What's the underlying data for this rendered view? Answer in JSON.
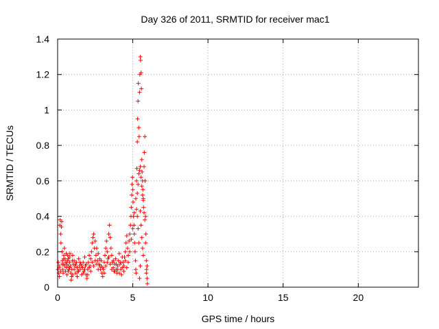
{
  "chart_data": {
    "type": "scatter",
    "title": "Day 326 of 2011, SRMTID for receiver mac1",
    "xlabel": "GPS time / hours",
    "ylabel": "SRMTID / TECUs",
    "xlim": [
      0,
      24
    ],
    "ylim": [
      0,
      1.4
    ],
    "xticks": [
      0,
      5,
      10,
      15,
      20
    ],
    "yticks": [
      0,
      0.2,
      0.4,
      0.6,
      0.8,
      1,
      1.2,
      1.4
    ],
    "ytick_labels": [
      "0",
      "0.2",
      "0.4",
      "0.6",
      "0.8",
      "1",
      "1.2",
      "1.4"
    ],
    "grid": true,
    "marker": "plus",
    "color": "#ff0000",
    "series": [
      {
        "points": [
          [
            0.02,
            0.1
          ],
          [
            0.05,
            0.14
          ],
          [
            0.08,
            0.08
          ],
          [
            0.1,
            0.12
          ],
          [
            0.12,
            0.06
          ],
          [
            0.15,
            0.35
          ],
          [
            0.17,
            0.38
          ],
          [
            0.2,
            0.3
          ],
          [
            0.22,
            0.25
          ],
          [
            0.25,
            0.34
          ],
          [
            0.27,
            0.37
          ],
          [
            0.3,
            0.2
          ],
          [
            0.32,
            0.15
          ],
          [
            0.35,
            0.1
          ],
          [
            0.37,
            0.08
          ],
          [
            0.4,
            0.13
          ],
          [
            0.42,
            0.18
          ],
          [
            0.45,
            0.22
          ],
          [
            0.47,
            0.12
          ],
          [
            0.5,
            0.16
          ],
          [
            0.52,
            0.09
          ],
          [
            0.55,
            0.14
          ],
          [
            0.57,
            0.19
          ],
          [
            0.6,
            0.11
          ],
          [
            0.62,
            0.07
          ],
          [
            0.65,
            0.15
          ],
          [
            0.67,
            0.18
          ],
          [
            0.7,
            0.12
          ],
          [
            0.72,
            0.16
          ],
          [
            0.75,
            0.1
          ],
          [
            0.78,
            0.17
          ],
          [
            0.8,
            0.14
          ],
          [
            0.82,
            0.19
          ],
          [
            0.85,
            0.12
          ],
          [
            0.88,
            0.08
          ],
          [
            0.9,
            0.04
          ],
          [
            0.93,
            0.06
          ],
          [
            0.95,
            0.1
          ],
          [
            0.98,
            0.15
          ],
          [
            1.0,
            0.18
          ],
          [
            1.05,
            0.13
          ],
          [
            1.1,
            0.1
          ],
          [
            1.15,
            0.12
          ],
          [
            1.2,
            0.08
          ],
          [
            1.25,
            0.14
          ],
          [
            1.3,
            0.11
          ],
          [
            1.35,
            0.09
          ],
          [
            1.4,
            0.16
          ],
          [
            1.45,
            0.12
          ],
          [
            1.5,
            0.1
          ],
          [
            1.55,
            0.13
          ],
          [
            1.6,
            0.07
          ],
          [
            1.65,
            0.11
          ],
          [
            1.7,
            0.14
          ],
          [
            1.75,
            0.09
          ],
          [
            1.8,
            0.17
          ],
          [
            1.85,
            0.12
          ],
          [
            1.9,
            0.07
          ],
          [
            1.95,
            0.05
          ],
          [
            2.0,
            0.1
          ],
          [
            2.05,
            0.14
          ],
          [
            2.1,
            0.18
          ],
          [
            2.15,
            0.12
          ],
          [
            2.2,
            0.16
          ],
          [
            2.25,
            0.2
          ],
          [
            2.3,
            0.25
          ],
          [
            2.35,
            0.28
          ],
          [
            2.4,
            0.3
          ],
          [
            2.45,
            0.22
          ],
          [
            2.5,
            0.26
          ],
          [
            2.55,
            0.18
          ],
          [
            2.6,
            0.22
          ],
          [
            2.65,
            0.15
          ],
          [
            2.7,
            0.19
          ],
          [
            2.75,
            0.13
          ],
          [
            2.8,
            0.16
          ],
          [
            2.85,
            0.1
          ],
          [
            2.9,
            0.12
          ],
          [
            2.95,
            0.08
          ],
          [
            3.0,
            0.06
          ],
          [
            3.05,
            0.1
          ],
          [
            3.1,
            0.14
          ],
          [
            3.15,
            0.18
          ],
          [
            3.2,
            0.22
          ],
          [
            3.25,
            0.26
          ],
          [
            3.3,
            0.2
          ],
          [
            3.35,
            0.16
          ],
          [
            3.4,
            0.3
          ],
          [
            3.45,
            0.35
          ],
          [
            3.5,
            0.28
          ],
          [
            3.55,
            0.22
          ],
          [
            3.6,
            0.18
          ],
          [
            3.65,
            0.14
          ],
          [
            3.7,
            0.11
          ],
          [
            3.75,
            0.09
          ],
          [
            3.8,
            0.13
          ],
          [
            3.85,
            0.16
          ],
          [
            3.9,
            0.1
          ],
          [
            3.95,
            0.08
          ],
          [
            4.0,
            0.12
          ],
          [
            4.05,
            0.15
          ],
          [
            4.1,
            0.19
          ],
          [
            4.15,
            0.13
          ],
          [
            4.2,
            0.1
          ],
          [
            4.25,
            0.07
          ],
          [
            4.3,
            0.11
          ],
          [
            4.35,
            0.14
          ],
          [
            4.4,
            0.09
          ],
          [
            4.45,
            0.17
          ],
          [
            4.5,
            0.2
          ],
          [
            4.55,
            0.25
          ],
          [
            4.6,
            0.29
          ],
          [
            4.65,
            0.22
          ],
          [
            4.7,
            0.18
          ],
          [
            4.75,
            0.26
          ],
          [
            4.8,
            0.3
          ],
          [
            4.85,
            0.35
          ],
          [
            4.88,
            0.4
          ],
          [
            4.9,
            0.45
          ],
          [
            4.93,
            0.52
          ],
          [
            4.95,
            0.58
          ],
          [
            4.98,
            0.62
          ],
          [
            5.0,
            0.55
          ],
          [
            5.02,
            0.48
          ],
          [
            5.05,
            0.4
          ],
          [
            5.08,
            0.35
          ],
          [
            5.1,
            0.3
          ],
          [
            5.12,
            0.25
          ],
          [
            5.15,
            0.2
          ],
          [
            5.18,
            0.15
          ],
          [
            5.2,
            0.1
          ],
          [
            5.22,
            0.08
          ],
          [
            5.25,
            0.6
          ],
          [
            5.27,
            0.67
          ],
          [
            5.3,
            0.82
          ],
          [
            5.32,
            0.95
          ],
          [
            5.35,
            1.05
          ],
          [
            5.37,
            1.15
          ],
          [
            5.4,
            0.9
          ],
          [
            5.42,
            0.85
          ],
          [
            5.45,
            1.1
          ],
          [
            5.47,
            1.2
          ],
          [
            5.5,
            1.3
          ],
          [
            5.52,
            1.28
          ],
          [
            5.55,
            1.21
          ],
          [
            5.57,
            1.12
          ],
          [
            5.6,
            0.72
          ],
          [
            5.62,
            0.65
          ],
          [
            5.65,
            0.6
          ],
          [
            5.67,
            0.55
          ],
          [
            5.7,
            0.5
          ],
          [
            5.72,
            0.45
          ],
          [
            5.75,
            0.68
          ],
          [
            5.77,
            0.76
          ],
          [
            5.8,
            0.85
          ],
          [
            5.82,
            0.6
          ],
          [
            5.85,
            0.4
          ],
          [
            5.87,
            0.3
          ],
          [
            5.9,
            0.15
          ],
          [
            5.92,
            0.1
          ],
          [
            5.95,
            0.05
          ],
          [
            5.97,
            0.02
          ],
          [
            5.5,
            0.43
          ],
          [
            5.55,
            0.35
          ],
          [
            5.6,
            0.28
          ],
          [
            5.65,
            0.22
          ],
          [
            5.7,
            0.18
          ],
          [
            5.45,
            0.05
          ],
          [
            5.5,
            0.12
          ],
          [
            5.4,
            0.25
          ],
          [
            5.35,
            0.33
          ],
          [
            5.3,
            0.4
          ],
          [
            0.1,
            0.11
          ],
          [
            0.2,
            0.09
          ],
          [
            0.3,
            0.13
          ],
          [
            0.4,
            0.16
          ],
          [
            0.6,
            0.13
          ],
          [
            0.7,
            0.09
          ],
          [
            0.8,
            0.11
          ],
          [
            1.0,
            0.07
          ],
          [
            1.1,
            0.15
          ],
          [
            1.2,
            0.13
          ],
          [
            1.3,
            0.06
          ],
          [
            1.4,
            0.09
          ],
          [
            1.5,
            0.14
          ],
          [
            1.6,
            0.12
          ],
          [
            1.7,
            0.08
          ],
          [
            1.8,
            0.1
          ],
          [
            1.9,
            0.13
          ],
          [
            2.0,
            0.07
          ],
          [
            2.1,
            0.11
          ],
          [
            2.2,
            0.09
          ],
          [
            2.3,
            0.14
          ],
          [
            2.4,
            0.12
          ],
          [
            2.5,
            0.15
          ],
          [
            2.6,
            0.13
          ],
          [
            2.7,
            0.1
          ],
          [
            2.8,
            0.12
          ],
          [
            2.9,
            0.15
          ],
          [
            3.0,
            0.11
          ],
          [
            3.1,
            0.08
          ],
          [
            3.2,
            0.12
          ],
          [
            3.3,
            0.14
          ],
          [
            3.4,
            0.17
          ],
          [
            3.5,
            0.13
          ],
          [
            3.6,
            0.1
          ],
          [
            3.7,
            0.15
          ],
          [
            3.8,
            0.09
          ],
          [
            3.9,
            0.13
          ],
          [
            4.0,
            0.1
          ],
          [
            4.1,
            0.08
          ],
          [
            4.2,
            0.14
          ],
          [
            4.3,
            0.17
          ],
          [
            4.4,
            0.12
          ],
          [
            4.5,
            0.15
          ],
          [
            4.6,
            0.11
          ],
          [
            4.7,
            0.14
          ],
          [
            4.8,
            0.2
          ],
          [
            4.9,
            0.27
          ],
          [
            5.0,
            0.33
          ],
          [
            5.1,
            0.42
          ],
          [
            5.2,
            0.5
          ],
          [
            5.25,
            0.44
          ],
          [
            5.3,
            0.53
          ],
          [
            5.35,
            0.58
          ],
          [
            5.4,
            0.64
          ],
          [
            5.45,
            0.66
          ],
          [
            5.5,
            0.68
          ],
          [
            5.55,
            0.62
          ],
          [
            5.6,
            0.57
          ],
          [
            5.65,
            0.52
          ],
          [
            5.7,
            0.49
          ],
          [
            5.75,
            0.42
          ],
          [
            5.8,
            0.38
          ],
          [
            5.85,
            0.25
          ],
          [
            5.9,
            0.08
          ],
          [
            5.95,
            0.12
          ]
        ]
      }
    ]
  }
}
